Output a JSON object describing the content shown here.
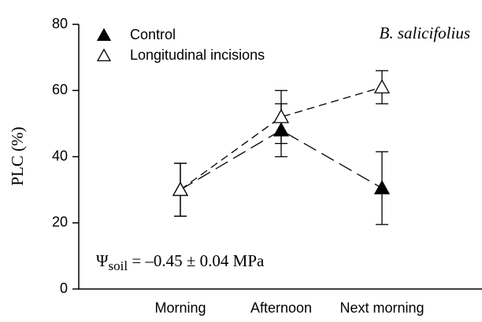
{
  "chart_data": {
    "type": "line",
    "y_label": "PLC (%)",
    "annotation": {
      "symbol": "Ψ",
      "subscript": "soil",
      "text": " = –0.45 ± 0.04 MPa"
    },
    "species": "B. salicifolius",
    "categories": [
      "Morning",
      "Afternoon",
      "Next morning"
    ],
    "series": [
      {
        "name": "Control",
        "color": "#000000",
        "marker": "filled-triangle",
        "values": [
          30,
          48,
          30.5
        ],
        "errors": [
          8,
          8,
          11
        ]
      },
      {
        "name": "Longitudinal incisions",
        "color": "#000000",
        "marker": "open-triangle",
        "values": [
          30,
          52,
          61
        ],
        "errors": [
          8,
          8,
          5
        ]
      }
    ],
    "ylim": [
      0,
      80
    ],
    "yticks": [
      0,
      20,
      40,
      60,
      80
    ],
    "legend": "upper-left"
  }
}
